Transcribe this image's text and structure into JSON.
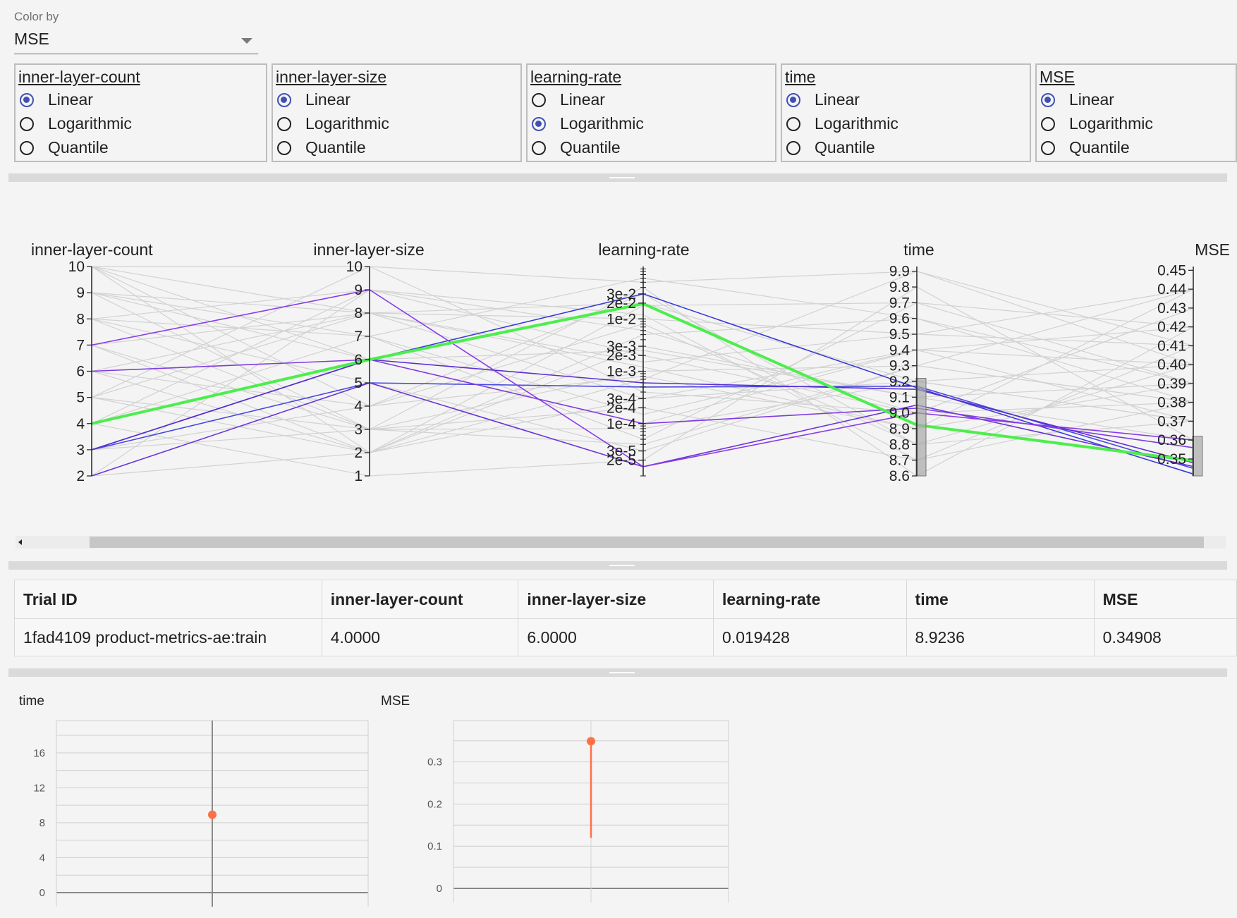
{
  "color_by": {
    "label": "Color by",
    "value": "MSE"
  },
  "scale_options": [
    "Linear",
    "Logarithmic",
    "Quantile"
  ],
  "scale_panels": [
    {
      "name": "inner-layer-count",
      "selected": "Linear"
    },
    {
      "name": "inner-layer-size",
      "selected": "Linear"
    },
    {
      "name": "learning-rate",
      "selected": "Logarithmic"
    },
    {
      "name": "time",
      "selected": "Linear"
    },
    {
      "name": "MSE",
      "selected": "Linear"
    }
  ],
  "parallel_coords": {
    "axes": [
      {
        "name": "inner-layer-count",
        "scale": "linear",
        "domain": [
          2,
          10
        ],
        "ticks": [
          "2",
          "3",
          "4",
          "5",
          "6",
          "7",
          "8",
          "9",
          "10"
        ]
      },
      {
        "name": "inner-layer-size",
        "scale": "linear",
        "domain": [
          1,
          10
        ],
        "ticks": [
          "1",
          "2",
          "3",
          "4",
          "5",
          "6",
          "7",
          "8",
          "9",
          "10"
        ]
      },
      {
        "name": "learning-rate",
        "scale": "log",
        "domain": [
          1e-05,
          0.1
        ],
        "ticks": [
          "2e-5",
          "3e-5",
          "1e-4",
          "2e-4",
          "3e-4",
          "1e-3",
          "2e-3",
          "3e-3",
          "1e-2",
          "2e-2",
          "3e-2"
        ]
      },
      {
        "name": "time",
        "scale": "linear",
        "domain": [
          8.6,
          9.93
        ],
        "ticks": [
          "8.6",
          "8.7",
          "8.8",
          "8.9",
          "9.0",
          "9.1",
          "9.2",
          "9.3",
          "9.4",
          "9.5",
          "9.6",
          "9.7",
          "9.8",
          "9.9"
        ]
      },
      {
        "name": "MSE",
        "scale": "linear",
        "domain": [
          0.341,
          0.452
        ],
        "ticks": [
          "0.35",
          "0.36",
          "0.37",
          "0.38",
          "0.39",
          "0.40",
          "0.41",
          "0.42",
          "0.43",
          "0.44",
          "0.45"
        ]
      }
    ],
    "brushes": [
      {
        "axis": "time",
        "range": [
          8.6,
          9.22
        ]
      },
      {
        "axis": "MSE",
        "range": [
          0.341,
          0.362
        ]
      }
    ],
    "selected_trial": [
      4,
      6,
      0.019428,
      8.9236,
      0.34908
    ],
    "highlighted_trials": [
      [
        3,
        6,
        0.03,
        9.16,
        0.342
      ],
      [
        3,
        5,
        0.0005,
        9.17,
        0.345
      ],
      [
        2,
        5,
        1.5e-05,
        9.05,
        0.346
      ],
      [
        6,
        6,
        0.0001,
        9.03,
        0.356
      ],
      [
        7,
        9,
        1.5e-05,
        9.0,
        0.36
      ],
      [
        3,
        6,
        0.0006,
        9.15,
        0.348
      ]
    ],
    "background_trials": [
      [
        10,
        10,
        0.05,
        9.9,
        0.4
      ],
      [
        9,
        8,
        0.01,
        9.5,
        0.44
      ],
      [
        8,
        3,
        0.001,
        9.3,
        0.38
      ],
      [
        5,
        2,
        0.0003,
        9.4,
        0.42
      ],
      [
        10,
        4,
        0.03,
        8.8,
        0.37
      ],
      [
        9,
        7,
        5e-05,
        9.7,
        0.39
      ],
      [
        8,
        9,
        0.002,
        9.0,
        0.43
      ],
      [
        7,
        3,
        0.0002,
        8.7,
        0.41
      ],
      [
        6,
        2,
        0.005,
        9.6,
        0.38
      ],
      [
        5,
        8,
        0.02,
        9.2,
        0.4
      ],
      [
        4,
        1,
        2e-05,
        9.8,
        0.36
      ],
      [
        3,
        4,
        0.0008,
        8.9,
        0.44
      ],
      [
        2,
        2,
        0.003,
        9.1,
        0.39
      ],
      [
        10,
        6,
        0.0001,
        9.4,
        0.37
      ],
      [
        9,
        3,
        0.04,
        8.6,
        0.42
      ],
      [
        8,
        5,
        3e-05,
        9.3,
        0.38
      ],
      [
        7,
        8,
        0.0015,
        9.5,
        0.41
      ],
      [
        6,
        4,
        0.008,
        8.8,
        0.4
      ],
      [
        5,
        10,
        0.0004,
        9.0,
        0.43
      ],
      [
        4,
        7,
        0.06,
        9.6,
        0.39
      ],
      [
        3,
        3,
        8e-05,
        9.2,
        0.37
      ],
      [
        2,
        9,
        0.012,
        8.7,
        0.38
      ],
      [
        10,
        2,
        0.0007,
        9.9,
        0.41
      ],
      [
        9,
        6,
        0.0025,
        9.1,
        0.36
      ],
      [
        8,
        7,
        0.00015,
        9.4,
        0.4
      ],
      [
        7,
        2,
        0.018,
        9.7,
        0.42
      ],
      [
        6,
        8,
        0.0012,
        8.9,
        0.39
      ],
      [
        5,
        3,
        4e-05,
        9.3,
        0.44
      ],
      [
        4,
        9,
        0.006,
        9.0,
        0.38
      ],
      [
        10,
        8,
        0.0003,
        9.2,
        0.37
      ]
    ]
  },
  "table": {
    "headers": [
      "Trial ID",
      "inner-layer-count",
      "inner-layer-size",
      "learning-rate",
      "time",
      "MSE"
    ],
    "row": [
      "1fad4109 product-metrics-ae:train",
      "4.0000",
      "6.0000",
      "0.019428",
      "8.9236",
      "0.34908"
    ]
  },
  "chart_data": [
    {
      "type": "scatter",
      "title": "time",
      "yticks": [
        "0",
        "4",
        "8",
        "12",
        "16"
      ],
      "ylim": [
        0,
        19.7
      ],
      "points": [
        {
          "y": 8.9236
        }
      ]
    },
    {
      "type": "scatter",
      "title": "MSE",
      "yticks": [
        "0",
        "0.1",
        "0.2",
        "0.3"
      ],
      "ylim": [
        0,
        0.398
      ],
      "points": [
        {
          "y": 0.34908,
          "error_low": 0.12
        }
      ]
    }
  ],
  "colors": {
    "selected_line": "#4cee4c",
    "highlight_lines": [
      "#3a3ad8",
      "#4848e0",
      "#6a35d8",
      "#7f3ae0",
      "#8a3ae8",
      "#5a2ed0"
    ],
    "background_line": "#d2d2d2",
    "radio_accent": "#3f51b5",
    "point": "#ff7043"
  }
}
